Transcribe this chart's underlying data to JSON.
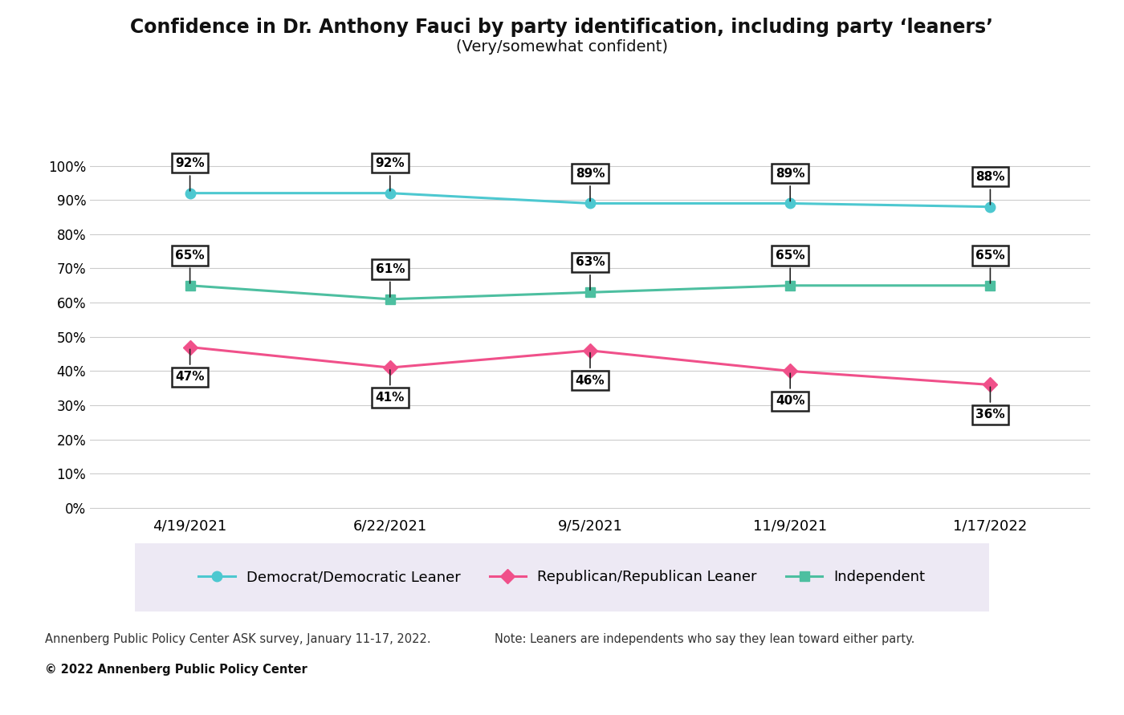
{
  "title_line1": "Confidence in Dr. Anthony Fauci by party identification, including party ‘leaners’",
  "title_line2": "(Very/somewhat confident)",
  "x_labels": [
    "4/19/2021",
    "6/22/2021",
    "9/5/2021",
    "11/9/2021",
    "1/17/2022"
  ],
  "democrat": [
    92,
    92,
    89,
    89,
    88
  ],
  "republican": [
    47,
    41,
    46,
    40,
    36
  ],
  "independent": [
    65,
    61,
    63,
    65,
    65
  ],
  "democrat_color": "#4DC8D0",
  "republican_color": "#F0508A",
  "independent_color": "#4DBFA0",
  "democrat_label": "Democrat/Democratic Leaner",
  "republican_label": "Republican/Republican Leaner",
  "independent_label": "Independent",
  "ylabel_ticks": [
    0,
    10,
    20,
    30,
    40,
    50,
    60,
    70,
    80,
    90,
    100
  ],
  "source_text": "Annenberg Public Policy Center ASK survey, January 11-17, 2022.",
  "note_text": "Note: Leaners are independents who say they lean toward either party.",
  "copyright_text": "© 2022 Annenberg Public Policy Center",
  "background_color": "#ffffff",
  "legend_bg_color": "#EDE9F4",
  "grid_color": "#cccccc",
  "annotation_box_bg": "#ffffff",
  "annotation_box_edge": "#222222"
}
